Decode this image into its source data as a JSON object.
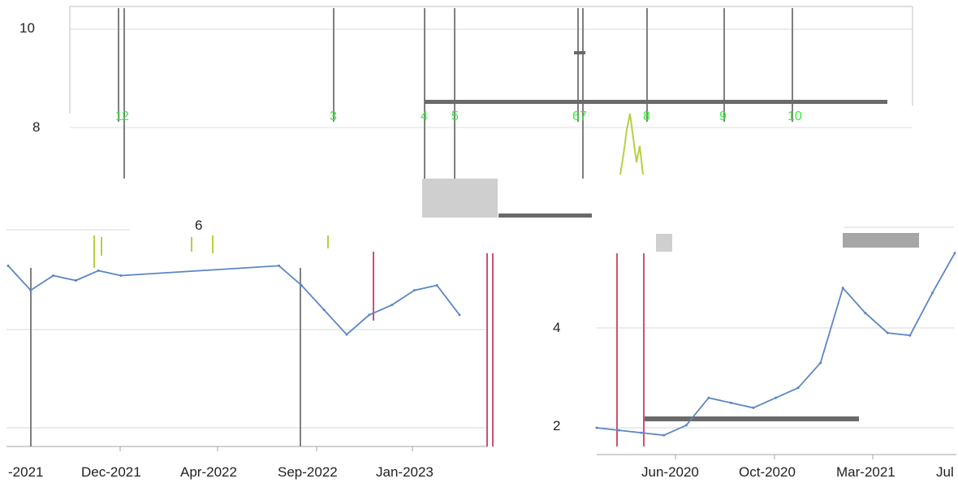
{
  "chart_data": [
    {
      "type": "line",
      "title": "",
      "xlabel": "",
      "ylabel": "",
      "yticks": [
        "10",
        "8",
        "6",
        "4",
        "2"
      ],
      "xticks": [
        "-2021",
        "Dec-2021",
        "Apr-2022",
        "Sep-2022",
        "Jan-2023"
      ],
      "event_markers": [
        "1",
        "2",
        "3",
        "4",
        "5",
        "6",
        "7",
        "8",
        "9",
        "10"
      ],
      "grid": true,
      "legend": "none",
      "colors": {
        "line": "#5b86c5",
        "event_line": "#7f7f7f",
        "marker_label": "#33ee33",
        "accent": "#d05070"
      },
      "series": [
        {
          "x": [
            "2021-08",
            "2021-09",
            "2021-10",
            "2021-11",
            "2021-12",
            "2022-01",
            "2022-08",
            "2022-09",
            "2022-10",
            "2022-11",
            "2022-12",
            "2023-01",
            "2023-02",
            "2023-03",
            "2023-04"
          ],
          "values": [
            5.3,
            4.8,
            5.1,
            5.0,
            5.2,
            5.1,
            5.3,
            4.9,
            4.4,
            3.9,
            4.3,
            4.5,
            4.8,
            4.9,
            4.3
          ]
        }
      ]
    },
    {
      "type": "line",
      "title": "",
      "xlabel": "",
      "ylabel": "",
      "yticks": [
        "4",
        "2"
      ],
      "xticks": [
        "Jun-2020",
        "Oct-2020",
        "Mar-2021",
        "Jul"
      ],
      "grid": true,
      "legend": "none",
      "series": [
        {
          "x": [
            "2020-03",
            "2020-04",
            "2020-05",
            "2020-06",
            "2020-07",
            "2020-08",
            "2020-09",
            "2020-10",
            "2020-11",
            "2020-12",
            "2021-01",
            "2021-02",
            "2021-03",
            "2021-04",
            "2021-05",
            "2021-06",
            "2021-07"
          ],
          "values": [
            2.0,
            1.95,
            1.9,
            1.85,
            2.05,
            2.6,
            2.5,
            2.4,
            2.6,
            2.8,
            3.3,
            4.8,
            4.3,
            3.9,
            3.85,
            4.7,
            5.5
          ]
        }
      ]
    }
  ]
}
